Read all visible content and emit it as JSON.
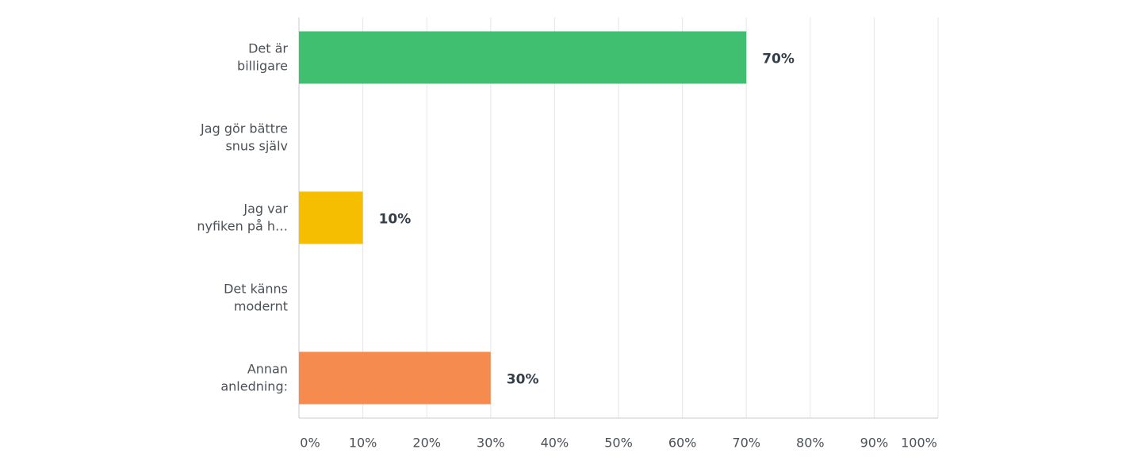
{
  "chart_data": {
    "type": "bar",
    "orientation": "horizontal",
    "categories": [
      "Det är\nbilligare",
      "Jag gör bättre\nsnus själv",
      "Jag var\nnyfiken på h…",
      "Det känns\nmodernt",
      "Annan\nanledning:"
    ],
    "values": [
      70,
      0,
      10,
      0,
      30
    ],
    "value_labels": [
      "70%",
      null,
      "10%",
      null,
      "30%"
    ],
    "colors": [
      "#3fbf6f",
      null,
      "#f6be00",
      null,
      "#f68b4f"
    ],
    "xlim": [
      0,
      100
    ],
    "xticks": [
      {
        "value": 0,
        "label": "0%"
      },
      {
        "value": 10,
        "label": "10%"
      },
      {
        "value": 20,
        "label": "20%"
      },
      {
        "value": 30,
        "label": "30%"
      },
      {
        "value": 40,
        "label": "40%"
      },
      {
        "value": 50,
        "label": "50%"
      },
      {
        "value": 60,
        "label": "60%"
      },
      {
        "value": 70,
        "label": "70%"
      },
      {
        "value": 80,
        "label": "80%"
      },
      {
        "value": 90,
        "label": "90%"
      },
      {
        "value": 100,
        "label": "100%"
      }
    ],
    "grid": true
  }
}
